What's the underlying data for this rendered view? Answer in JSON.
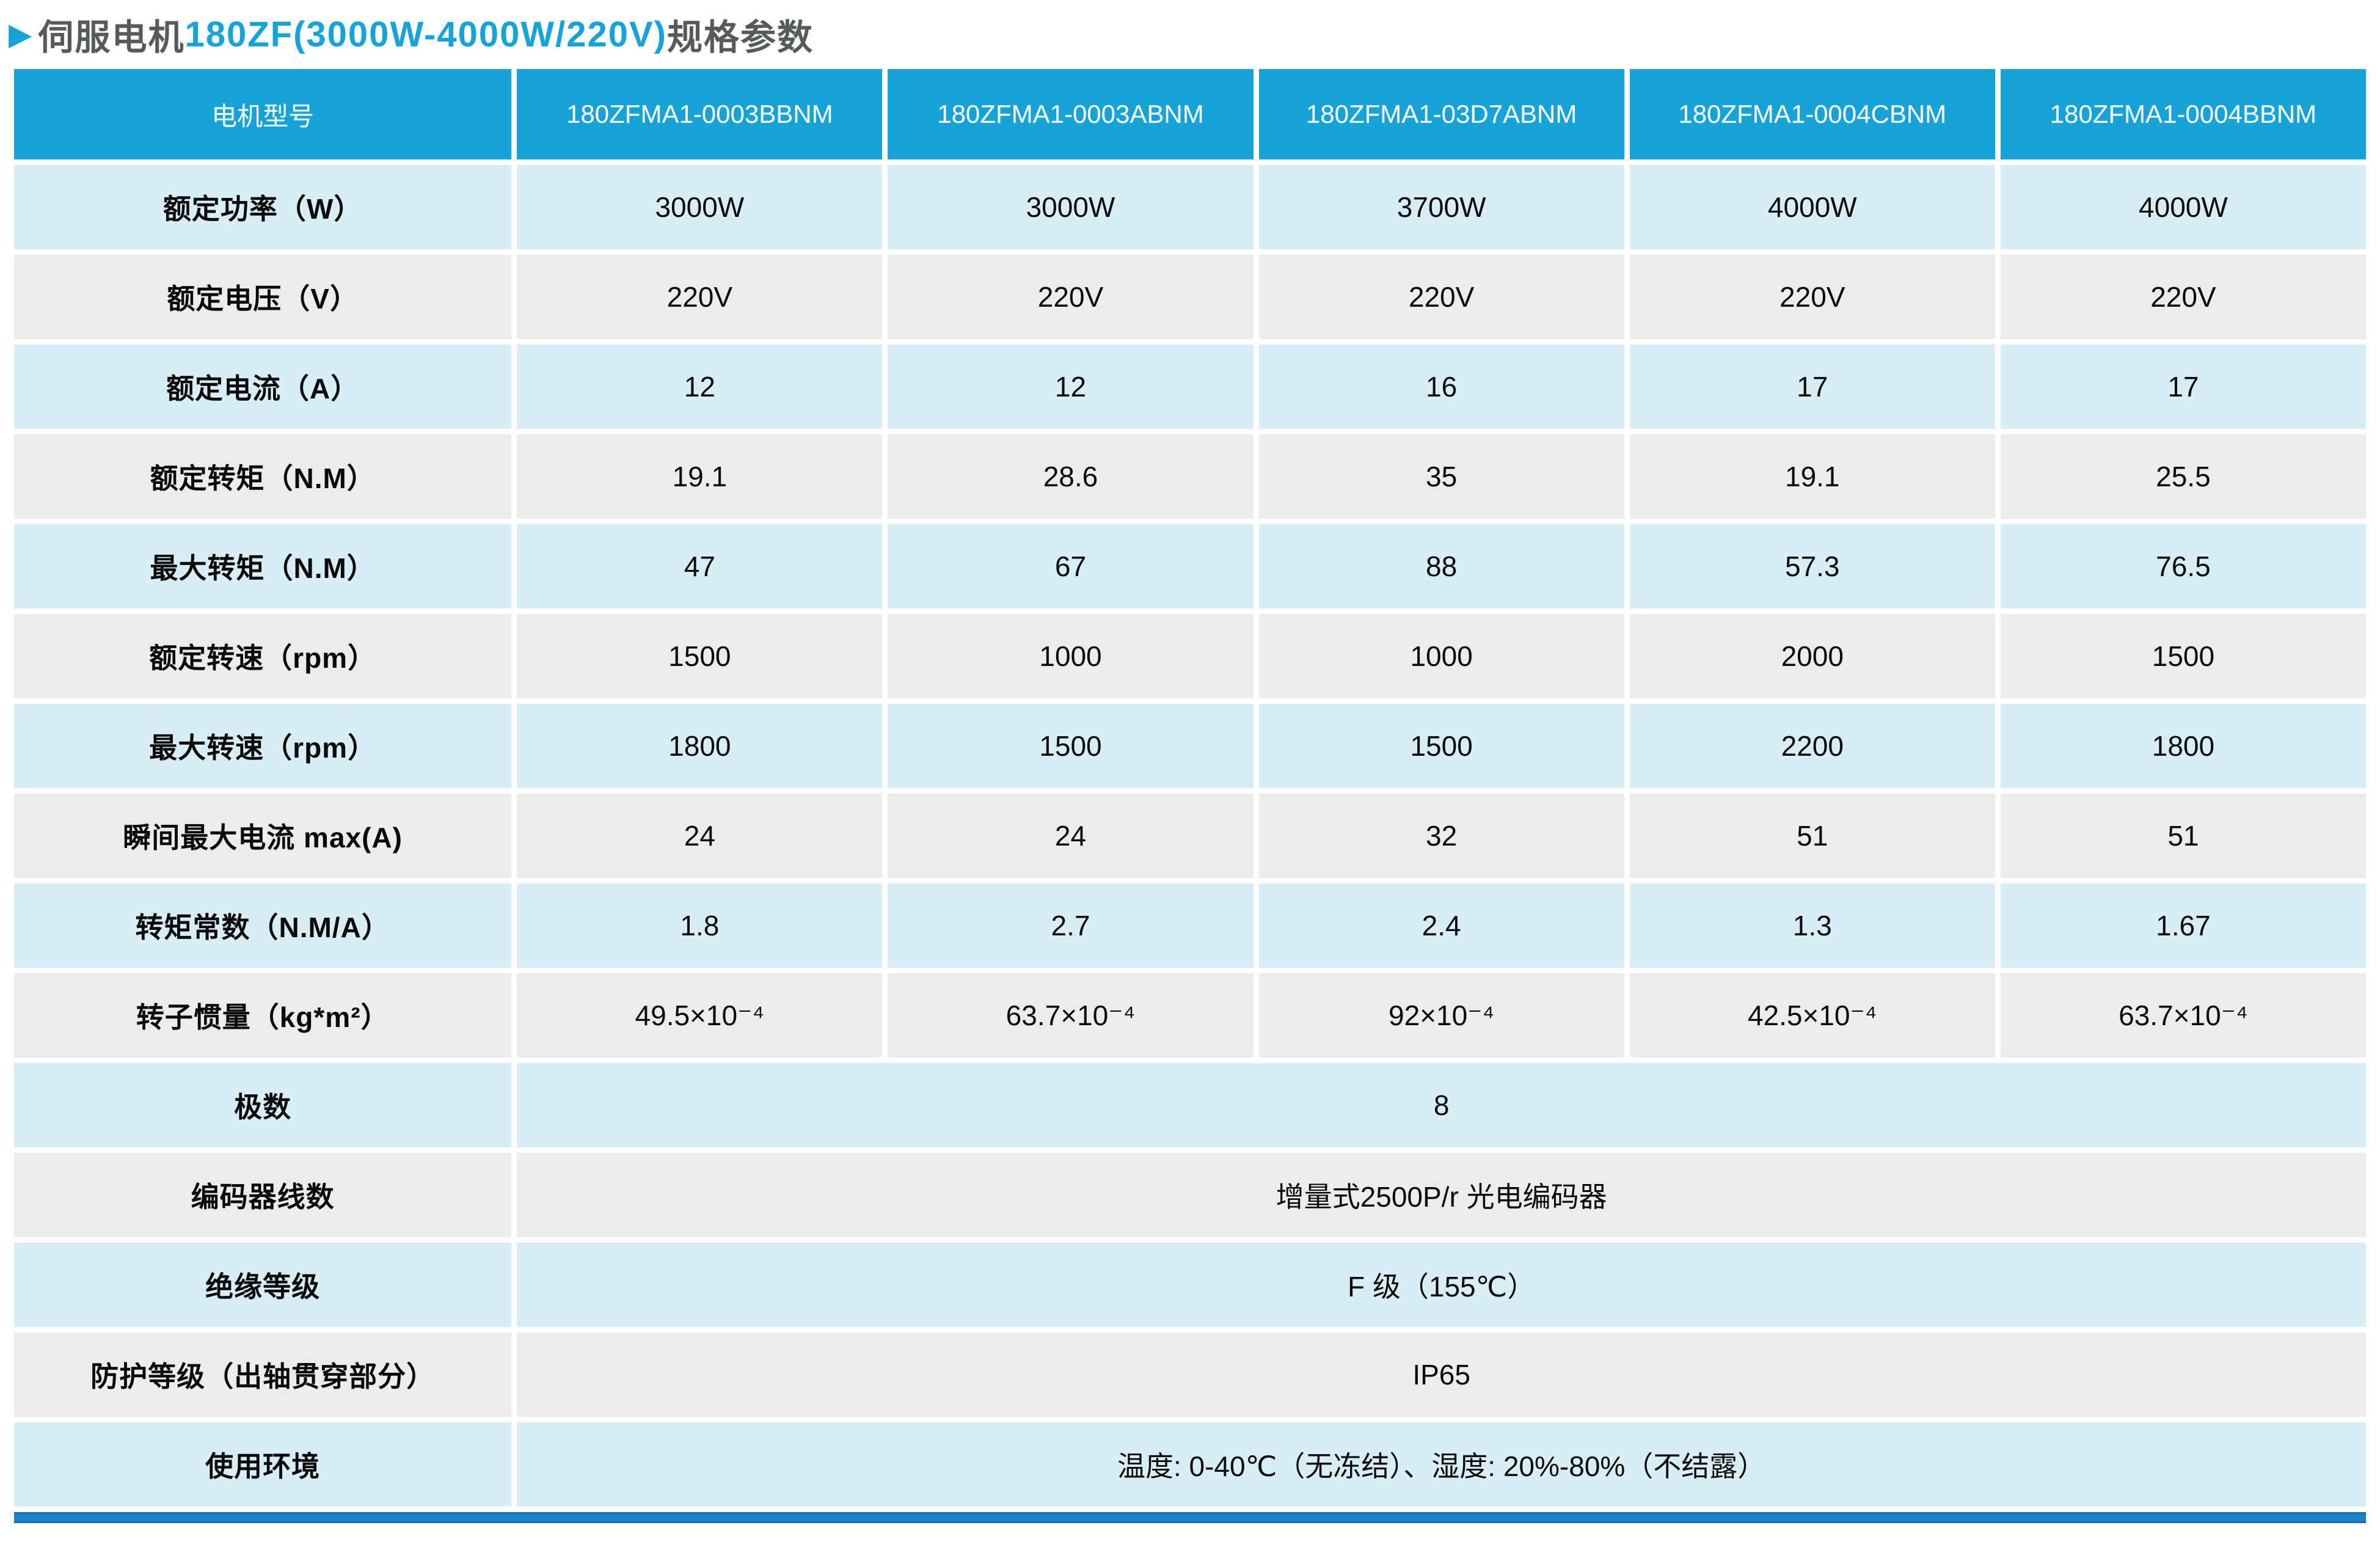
{
  "title": {
    "arrow": "▶",
    "prefix": "伺服电机",
    "highlight": "180ZF(3000W-4000W/220V)",
    "suffix": "规格参数"
  },
  "colors": {
    "accent_blue": "#18a3d8",
    "header_bg": "#18a3d8",
    "row_blue": "#d9edf4",
    "row_gray": "#ececec",
    "title_dark": "#58595b",
    "bottom_bar_blue": "#1b82c6",
    "header_text": "#ffffff",
    "cell_text": "#0a0a0a"
  },
  "table": {
    "header": {
      "label": "电机型号",
      "models": [
        "180ZFMA1-0003BBNM",
        "180ZFMA1-0003ABNM",
        "180ZFMA1-03D7ABNM",
        "180ZFMA1-0004CBNM",
        "180ZFMA1-0004BBNM"
      ]
    },
    "rows": [
      {
        "label": "额定功率（W）",
        "values": [
          "3000W",
          "3000W",
          "3700W",
          "4000W",
          "4000W"
        ]
      },
      {
        "label": "额定电压（V）",
        "values": [
          "220V",
          "220V",
          "220V",
          "220V",
          "220V"
        ]
      },
      {
        "label": "额定电流（A）",
        "values": [
          "12",
          "12",
          "16",
          "17",
          "17"
        ]
      },
      {
        "label": "额定转矩（N.M）",
        "values": [
          "19.1",
          "28.6",
          "35",
          "19.1",
          "25.5"
        ]
      },
      {
        "label": "最大转矩（N.M）",
        "values": [
          "47",
          "67",
          "88",
          "57.3",
          "76.5"
        ]
      },
      {
        "label": "额定转速（rpm）",
        "values": [
          "1500",
          "1000",
          "1000",
          "2000",
          "1500"
        ]
      },
      {
        "label": "最大转速（rpm）",
        "values": [
          "1800",
          "1500",
          "1500",
          "2200",
          "1800"
        ]
      },
      {
        "label": "瞬间最大电流 max(A)",
        "values": [
          "24",
          "24",
          "32",
          "51",
          "51"
        ]
      },
      {
        "label": "转矩常数（N.M/A）",
        "values": [
          "1.8",
          "2.7",
          "2.4",
          "1.3",
          "1.67"
        ]
      },
      {
        "label": "转子惯量（kg*m²）",
        "values": [
          "49.5×10⁻⁴",
          "63.7×10⁻⁴",
          "92×10⁻⁴",
          "42.5×10⁻⁴",
          "63.7×10⁻⁴"
        ]
      },
      {
        "label": "极数",
        "merged": "8"
      },
      {
        "label": "编码器线数",
        "merged": "增量式2500P/r 光电编码器"
      },
      {
        "label": "绝缘等级",
        "merged": "F 级（155℃）"
      },
      {
        "label": "防护等级（出轴贯穿部分）",
        "merged": "IP65"
      },
      {
        "label": "使用环境",
        "merged": "温度: 0-40℃（无冻结）、湿度: 20%-80%（不结露）"
      }
    ]
  }
}
